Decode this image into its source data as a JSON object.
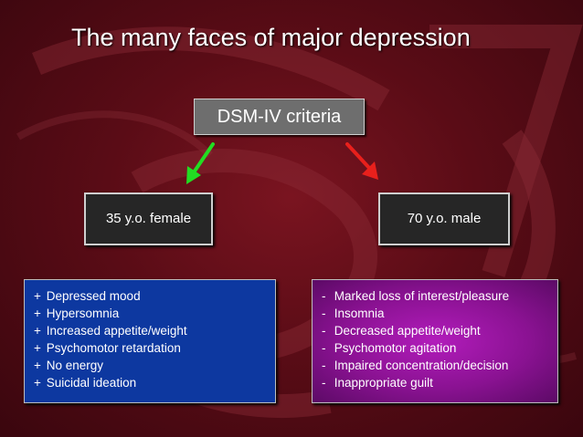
{
  "slide": {
    "title": "The many faces of major depression",
    "criteria_label": "DSM-IV criteria",
    "female": {
      "label": "35 y.o. female",
      "arrow_color": "#22dd22",
      "symptoms": [
        {
          "sign": "+",
          "text": "Depressed mood"
        },
        {
          "sign": "+",
          "text": "Hypersomnia"
        },
        {
          "sign": "+",
          "text": "Increased appetite/weight"
        },
        {
          "sign": "+",
          "text": "Psychomotor retardation"
        },
        {
          "sign": "+",
          "text": "No energy"
        },
        {
          "sign": "+",
          "text": "Suicidal ideation"
        }
      ],
      "box_color": "#0d38a0"
    },
    "male": {
      "label": "70 y.o. male",
      "arrow_color": "#e8201c",
      "symptoms": [
        {
          "sign": "-",
          "text": "Marked loss of interest/pleasure"
        },
        {
          "sign": "-",
          "text": "Insomnia"
        },
        {
          "sign": "-",
          "text": "Decreased appetite/weight"
        },
        {
          "sign": "-",
          "text": "Psychomotor agitation"
        },
        {
          "sign": "-",
          "text": "Impaired concentration/decision"
        },
        {
          "sign": "-",
          "text": "Inappropriate guilt"
        }
      ],
      "box_color": "#9a16a2"
    },
    "background_color": "#5a0c16"
  }
}
